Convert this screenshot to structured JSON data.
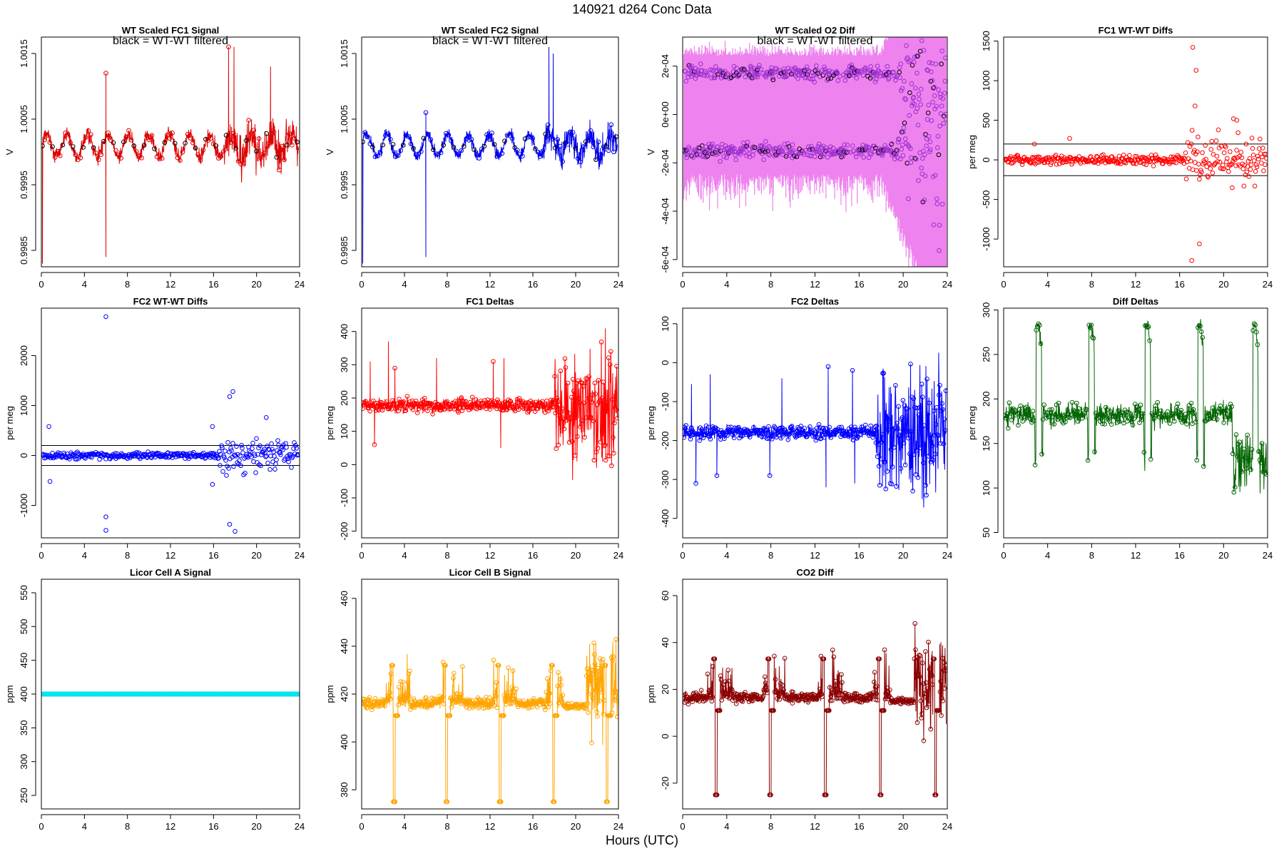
{
  "page": {
    "title": "140921    d264    Conc Data",
    "xlabel": "Hours (UTC)"
  },
  "chart_data": [
    {
      "id": "p1",
      "type": "line",
      "style": "band",
      "title": "WT Scaled FC1 Signal",
      "subtitle": "black = WT-WT filtered",
      "ylabel": "V",
      "xlim": [
        0,
        24
      ],
      "ylim": [
        0.99825,
        1.00175
      ],
      "xticks": [
        0,
        4,
        8,
        12,
        16,
        20,
        24
      ],
      "yticks": [
        0.9985,
        0.9995,
        1.0005,
        1.0015
      ],
      "ytick_labels": [
        "0.9985",
        "0.9995",
        "1.0005",
        "1.0015"
      ],
      "color": "#dd0000",
      "marker_color": "#000000",
      "center": 1.0001,
      "wave_amp": 0.00017,
      "wave_period": 1.9,
      "noise": 8e-05,
      "tail_start": 17,
      "tail_noise": 0.00013,
      "spikes": [
        [
          0.1,
          0.9983
        ],
        [
          6.0,
          0.9984
        ],
        [
          6.0,
          1.0012
        ],
        [
          17.4,
          1.0016
        ],
        [
          17.9,
          1.0016
        ],
        [
          21.3,
          1.0013
        ]
      ]
    },
    {
      "id": "p2",
      "type": "line",
      "style": "band",
      "title": "WT Scaled FC2 Signal",
      "subtitle": "black = WT-WT filtered",
      "ylabel": "V",
      "xlim": [
        0,
        24
      ],
      "ylim": [
        0.99825,
        1.00175
      ],
      "xticks": [
        0,
        4,
        8,
        12,
        16,
        20,
        24
      ],
      "yticks": [
        0.9985,
        0.9995,
        1.0005,
        1.0015
      ],
      "ytick_labels": [
        "0.9985",
        "0.9995",
        "1.0005",
        "1.0015"
      ],
      "color": "#0000ee",
      "marker_color": "#000000",
      "center": 1.0001,
      "wave_amp": 0.00016,
      "wave_period": 1.9,
      "noise": 7e-05,
      "tail_start": 17,
      "tail_noise": 9e-05,
      "spikes": [
        [
          0.1,
          0.9983
        ],
        [
          6.0,
          0.9984
        ],
        [
          6.0,
          1.0006
        ],
        [
          17.5,
          1.0016
        ],
        [
          17.9,
          1.0015
        ]
      ]
    },
    {
      "id": "p3",
      "type": "line",
      "style": "o2diff",
      "title": "WT Scaled O2 Diff",
      "subtitle": "black = WT-WT filtered",
      "ylabel": "V",
      "xlim": [
        0,
        24
      ],
      "ylim": [
        -0.00063,
        0.00032
      ],
      "xticks": [
        0,
        4,
        8,
        12,
        16,
        20,
        24
      ],
      "yticks": [
        -0.0006,
        -0.0004,
        -0.0002,
        0,
        0.0002
      ],
      "ytick_labels": [
        "-6e-04",
        "-4e-04",
        "-2e-04",
        "0e+00",
        "2e-04"
      ],
      "color": "#ee82ee",
      "marker_color": "#9b30d0",
      "upper_level": 0.00017,
      "lower_level": -0.00015,
      "band_half": 0.00012
    },
    {
      "id": "p4",
      "type": "scatter",
      "style": "diffs",
      "title": "FC1 WT-WT Diffs",
      "subtitle": "",
      "ylabel": "per meg",
      "xlim": [
        0,
        24
      ],
      "ylim": [
        -1350,
        1550
      ],
      "xticks": [
        0,
        4,
        8,
        12,
        16,
        20,
        24
      ],
      "yticks": [
        -1000,
        -500,
        0,
        500,
        1000,
        1500
      ],
      "ytick_labels": [
        "-1000",
        "-500",
        "0",
        "500",
        "1000",
        "1500"
      ],
      "color": "#ff0000",
      "hlines": [
        200,
        -200
      ],
      "noise": 40,
      "tail_start": 16.5,
      "tail_noise": 180,
      "outliers": [
        [
          17.2,
          1420
        ],
        [
          17.5,
          1130
        ],
        [
          17.4,
          680
        ],
        [
          17.8,
          -1060
        ],
        [
          17.1,
          -1270
        ],
        [
          6.0,
          270
        ],
        [
          2.8,
          200
        ],
        [
          20.9,
          520
        ],
        [
          21.2,
          500
        ]
      ]
    },
    {
      "id": "p5",
      "type": "scatter",
      "style": "diffs",
      "title": "FC2 WT-WT Diffs",
      "subtitle": "",
      "ylabel": "per meg",
      "xlim": [
        0,
        24
      ],
      "ylim": [
        -1650,
        2950
      ],
      "xticks": [
        0,
        4,
        8,
        12,
        16,
        20,
        24
      ],
      "yticks": [
        -1000,
        0,
        1000,
        2000
      ],
      "ytick_labels": [
        "-1000",
        "0",
        "1000",
        "2000"
      ],
      "color": "#0000ff",
      "hlines": [
        200,
        -200
      ],
      "noise": 45,
      "tail_start": 16.5,
      "tail_noise": 200,
      "outliers": [
        [
          6.0,
          2780
        ],
        [
          0.7,
          580
        ],
        [
          0.8,
          -520
        ],
        [
          6.0,
          -1230
        ],
        [
          6.0,
          -1500
        ],
        [
          15.9,
          580
        ],
        [
          15.9,
          -580
        ],
        [
          17.5,
          1180
        ],
        [
          17.8,
          1280
        ],
        [
          17.5,
          -1380
        ],
        [
          18.0,
          -1520
        ],
        [
          20.9,
          760
        ]
      ]
    },
    {
      "id": "p6",
      "type": "line",
      "style": "deltas",
      "title": "FC1 Deltas",
      "subtitle": "",
      "ylabel": "per meg",
      "xlim": [
        0,
        24
      ],
      "ylim": [
        -220,
        470
      ],
      "xticks": [
        0,
        4,
        8,
        12,
        16,
        20,
        24
      ],
      "yticks": [
        -200,
        -100,
        0,
        100,
        200,
        300,
        400
      ],
      "ytick_labels": [
        "-200",
        "-100",
        "0",
        "100",
        "200",
        "300",
        "400"
      ],
      "color": "#ff0000",
      "base": 178,
      "noise": 14,
      "tail_start": 18,
      "tail_noise": 110,
      "spikes": [
        [
          0.8,
          310
        ],
        [
          2.5,
          370
        ],
        [
          3.1,
          290
        ],
        [
          1.2,
          60
        ],
        [
          7.0,
          320
        ],
        [
          12.3,
          310
        ],
        [
          13.3,
          320
        ],
        [
          13.0,
          50
        ],
        [
          15.7,
          150
        ]
      ]
    },
    {
      "id": "p7",
      "type": "line",
      "style": "deltas",
      "title": "FC2 Deltas",
      "subtitle": "",
      "ylabel": "per meg",
      "xlim": [
        0,
        24
      ],
      "ylim": [
        -450,
        140
      ],
      "xticks": [
        0,
        4,
        8,
        12,
        16,
        20,
        24
      ],
      "yticks": [
        -400,
        -300,
        -200,
        -100,
        0,
        100
      ],
      "ytick_labels": [
        "-400",
        "-300",
        "-200",
        "-100",
        "0",
        "100"
      ],
      "color": "#0000ff",
      "base": -180,
      "noise": 13,
      "tail_start": 17.5,
      "tail_noise": 95,
      "spikes": [
        [
          0.8,
          -55
        ],
        [
          2.5,
          -30
        ],
        [
          3.1,
          -290
        ],
        [
          1.2,
          -310
        ],
        [
          7.9,
          -290
        ],
        [
          9.0,
          -40
        ],
        [
          13.2,
          -10
        ],
        [
          13.0,
          -320
        ],
        [
          15.4,
          -20
        ],
        [
          15.6,
          -310
        ]
      ]
    },
    {
      "id": "p8",
      "type": "line",
      "style": "diffdeltas",
      "title": "Diff Deltas",
      "subtitle": "",
      "ylabel": "per meg",
      "xlim": [
        0,
        24
      ],
      "ylim": [
        44,
        302
      ],
      "xticks": [
        0,
        4,
        8,
        12,
        16,
        20,
        24
      ],
      "yticks": [
        50,
        100,
        150,
        200,
        250,
        300
      ],
      "ytick_labels": [
        "50",
        "100",
        "150",
        "200",
        "250",
        "300"
      ],
      "color": "#006400",
      "base": 182,
      "noise": 9,
      "cal_times": [
        3.2,
        8.0,
        13.1,
        17.9,
        22.9
      ],
      "cal_high": 285,
      "cal_low": 135,
      "dip_start": 20.8,
      "dip_level": 130,
      "dip_noise": 25
    },
    {
      "id": "p9",
      "type": "scatter",
      "style": "flat",
      "title": "Licor Cell A Signal",
      "subtitle": "",
      "ylabel": "ppm",
      "xlim": [
        0,
        24
      ],
      "ylim": [
        230,
        570
      ],
      "xticks": [
        0,
        4,
        8,
        12,
        16,
        20,
        24
      ],
      "yticks": [
        250,
        300,
        350,
        400,
        450,
        500,
        550
      ],
      "ytick_labels": [
        "250",
        "300",
        "350",
        "400",
        "450",
        "500",
        "550"
      ],
      "color": "#00e5ee",
      "value": 400
    },
    {
      "id": "p10",
      "type": "line",
      "style": "licor",
      "title": "Licor Cell B Signal",
      "subtitle": "",
      "ylabel": "ppm",
      "xlim": [
        0,
        24
      ],
      "ylim": [
        372,
        468
      ],
      "xticks": [
        0,
        4,
        8,
        12,
        16,
        20,
        24
      ],
      "yticks": [
        380,
        400,
        420,
        440,
        460
      ],
      "ytick_labels": [
        "380",
        "400",
        "420",
        "440",
        "460"
      ],
      "color": "#ffa500",
      "base": 416,
      "noise": 1.6,
      "cal_times": [
        3.1,
        8.0,
        13.0,
        18.0,
        23.0
      ],
      "cal_high": 432,
      "cal_low": 375,
      "cal_mid": 411,
      "burst_amp": 12,
      "tail_start": 21,
      "tail_noise": 14,
      "tail_base": 424,
      "dip_start": 18.8,
      "dip_level": 415
    },
    {
      "id": "p11",
      "type": "line",
      "style": "licor",
      "title": "CO2 Diff",
      "subtitle": "",
      "ylabel": "ppm",
      "xlim": [
        0,
        24
      ],
      "ylim": [
        -31,
        67
      ],
      "xticks": [
        0,
        4,
        8,
        12,
        16,
        20,
        24
      ],
      "yticks": [
        -20,
        0,
        20,
        40,
        60
      ],
      "ytick_labels": [
        "-20",
        "0",
        "20",
        "40",
        "60"
      ],
      "color": "#8b0000",
      "base": 16.5,
      "noise": 1.6,
      "cal_times": [
        3.1,
        8.0,
        13.0,
        18.0,
        23.0
      ],
      "cal_high": 33,
      "cal_low": -25,
      "cal_mid": 11,
      "burst_amp": 12,
      "tail_start": 21,
      "tail_noise": 14,
      "tail_base": 24,
      "dip_start": 18.8,
      "dip_level": 15
    }
  ]
}
